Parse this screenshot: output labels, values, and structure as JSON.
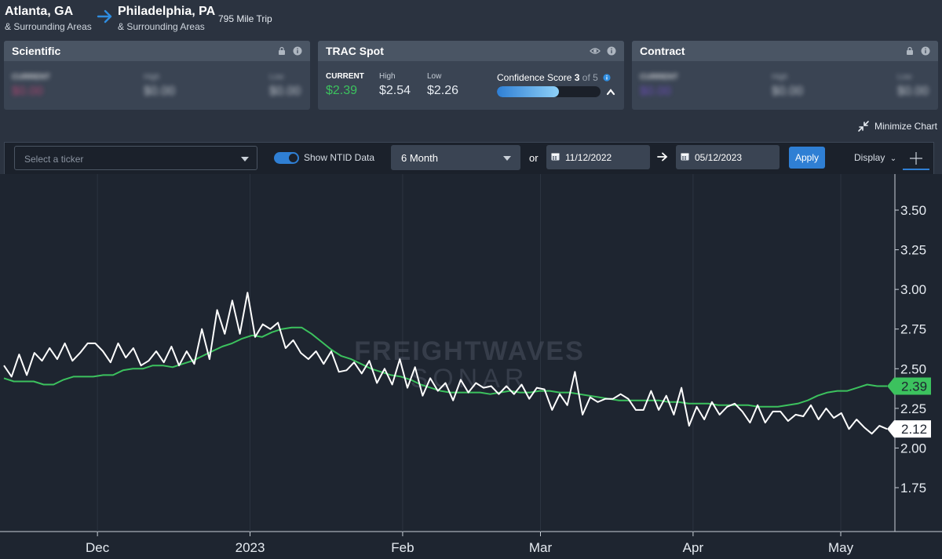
{
  "route": {
    "origin": {
      "city": "Atlanta, GA",
      "area": "& Surrounding Areas"
    },
    "destination": {
      "city": "Philadelphia, PA",
      "area": "& Surrounding Areas"
    },
    "trip": "795 Mile Trip"
  },
  "panels": {
    "scientific": {
      "title": "Scientific",
      "current_label": "CURRENT",
      "current": "$0.00",
      "high_label": "High",
      "high": "$0.00",
      "low_label": "Low",
      "low": "$0.00"
    },
    "trac": {
      "title": "TRAC Spot",
      "current_label": "CURRENT",
      "current": "$2.39",
      "high_label": "High",
      "high": "$2.54",
      "low_label": "Low",
      "low": "$2.26",
      "confidence_label": "Confidence Score",
      "confidence_score": "3",
      "confidence_of": "of 5",
      "confidence_fraction": 0.6
    },
    "contract": {
      "title": "Contract",
      "current_label": "CURRENT",
      "current": "$0.00",
      "high_label": "High",
      "high": "$0.00",
      "low_label": "Low",
      "low": "$0.00"
    }
  },
  "minimize_label": "Minimize Chart",
  "toolbar": {
    "ticker_placeholder": "Select a ticker",
    "show_ntid_label": "Show NTID Data",
    "show_ntid_on": true,
    "period": "6 Month",
    "or_label": "or",
    "date_from": "11/12/2022",
    "date_to": "05/12/2023",
    "apply_label": "Apply",
    "display_label": "Display"
  },
  "watermark": {
    "line1": "FREIGHTWAVES",
    "line2": "SONAR"
  },
  "colors": {
    "accent": "#2f7fd4",
    "green": "#3cc25e",
    "white_series": "#ffffff",
    "contract_purple": "#7a4fd6",
    "scientific_pink": "#d0457a"
  },
  "chart_data": {
    "type": "line",
    "x_ticks": [
      "Dec",
      "2023",
      "Feb",
      "Mar",
      "Apr",
      "May"
    ],
    "y_ticks": [
      "3.50",
      "3.25",
      "3.00",
      "2.75",
      "2.50",
      "2.25",
      "2.00",
      "1.75"
    ],
    "ylim": [
      1.5,
      3.6
    ],
    "x_range": [
      "2022-11-12",
      "2023-05-12"
    ],
    "series": [
      {
        "color": "#3cc25e",
        "last_label": "2.39",
        "values": [
          2.44,
          2.42,
          2.42,
          2.42,
          2.4,
          2.4,
          2.43,
          2.45,
          2.45,
          2.45,
          2.46,
          2.46,
          2.49,
          2.5,
          2.5,
          2.52,
          2.52,
          2.51,
          2.53,
          2.55,
          2.58,
          2.61,
          2.64,
          2.66,
          2.69,
          2.71,
          2.7,
          2.73,
          2.75,
          2.76,
          2.76,
          2.72,
          2.67,
          2.62,
          2.58,
          2.56,
          2.53,
          2.5,
          2.48,
          2.46,
          2.45,
          2.43,
          2.4,
          2.38,
          2.36,
          2.35,
          2.35,
          2.35,
          2.35,
          2.34,
          2.35,
          2.36,
          2.35,
          2.35,
          2.36,
          2.36,
          2.35,
          2.35,
          2.34,
          2.33,
          2.32,
          2.31,
          2.3,
          2.3,
          2.3,
          2.3,
          2.3,
          2.29,
          2.29,
          2.28,
          2.28,
          2.28,
          2.27,
          2.27,
          2.27,
          2.27,
          2.26,
          2.26,
          2.26,
          2.27,
          2.28,
          2.3,
          2.33,
          2.35,
          2.36,
          2.36,
          2.38,
          2.4,
          2.39,
          2.39
        ]
      },
      {
        "color": "#ffffff",
        "last_label": "2.12",
        "values": [
          2.52,
          2.45,
          2.59,
          2.46,
          2.6,
          2.55,
          2.63,
          2.56,
          2.66,
          2.55,
          2.6,
          2.66,
          2.66,
          2.61,
          2.54,
          2.66,
          2.57,
          2.63,
          2.52,
          2.55,
          2.61,
          2.54,
          2.64,
          2.52,
          2.61,
          2.53,
          2.75,
          2.56,
          2.87,
          2.72,
          2.93,
          2.72,
          2.98,
          2.7,
          2.78,
          2.75,
          2.79,
          2.63,
          2.68,
          2.6,
          2.56,
          2.61,
          2.53,
          2.61,
          2.48,
          2.49,
          2.54,
          2.47,
          2.55,
          2.41,
          2.5,
          2.4,
          2.56,
          2.38,
          2.51,
          2.33,
          2.44,
          2.36,
          2.41,
          2.3,
          2.43,
          2.35,
          2.41,
          2.38,
          2.39,
          2.34,
          2.39,
          2.34,
          2.4,
          2.31,
          2.38,
          2.37,
          2.24,
          2.34,
          2.27,
          2.48,
          2.21,
          2.32,
          2.29,
          2.31,
          2.31,
          2.34,
          2.31,
          2.24,
          2.24,
          2.36,
          2.24,
          2.33,
          2.21,
          2.38,
          2.14,
          2.26,
          2.18,
          2.29,
          2.21,
          2.26,
          2.28,
          2.23,
          2.16,
          2.27,
          2.16,
          2.23,
          2.23,
          2.17,
          2.21,
          2.2,
          2.27,
          2.18,
          2.25,
          2.19,
          2.22,
          2.12,
          2.18,
          2.13,
          2.09,
          2.14,
          2.12
        ]
      }
    ]
  }
}
